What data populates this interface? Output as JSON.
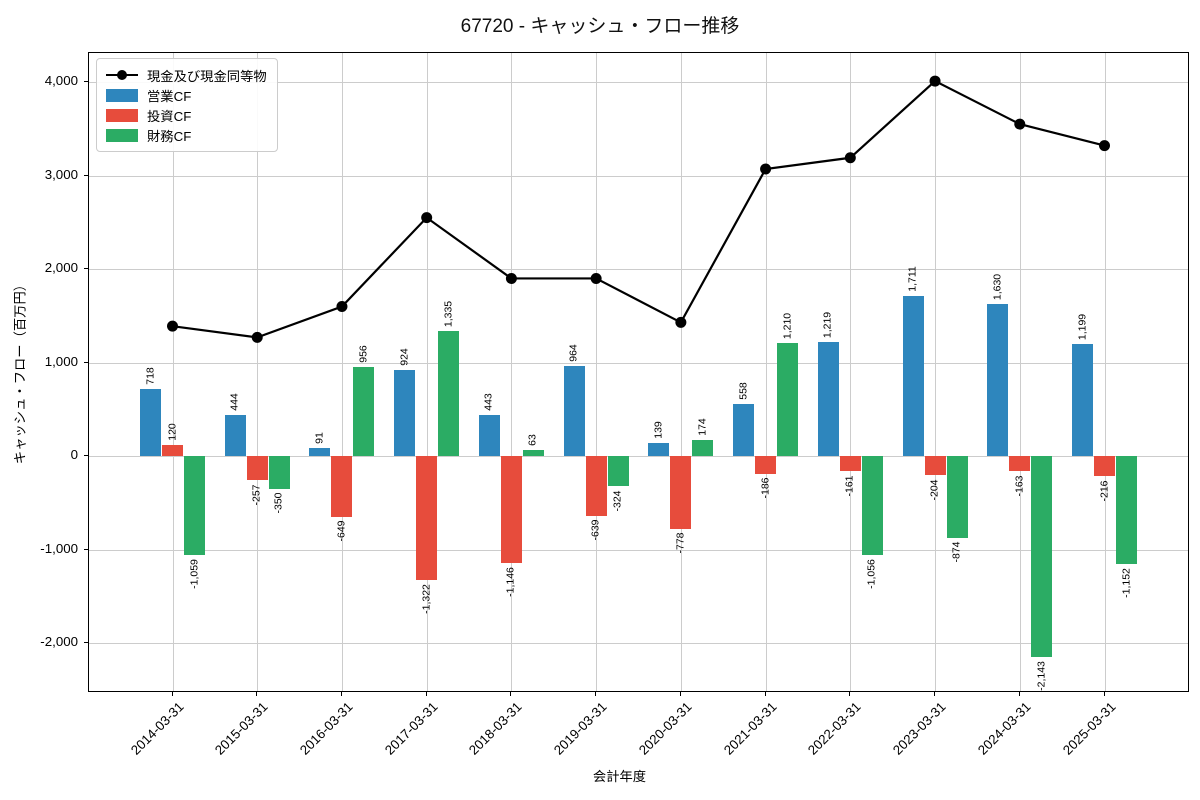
{
  "chart_data": {
    "type": "bar",
    "title": "67720 - キャッシュ・フロー推移",
    "xlabel": "会計年度",
    "ylabel": "キャッシュ・フロー（百万円）",
    "categories": [
      "2014-03-31",
      "2015-03-31",
      "2016-03-31",
      "2017-03-31",
      "2018-03-31",
      "2019-03-31",
      "2020-03-31",
      "2021-03-31",
      "2022-03-31",
      "2023-03-31",
      "2024-03-31",
      "2025-03-31"
    ],
    "series": [
      {
        "name": "現金及び現金同等物",
        "type": "line",
        "color": "#000000",
        "values": [
          1390,
          1270,
          1600,
          2550,
          1900,
          1900,
          1430,
          3070,
          3190,
          4010,
          3550,
          3320
        ]
      },
      {
        "name": "営業CF",
        "type": "bar",
        "color": "#2E86BD",
        "values": [
          718,
          444,
          91,
          924,
          443,
          964,
          139,
          558,
          1219,
          1711,
          1630,
          1199
        ]
      },
      {
        "name": "投資CF",
        "type": "bar",
        "color": "#E74C3C",
        "values": [
          120,
          -257,
          -649,
          -1322,
          -1146,
          -639,
          -778,
          -186,
          -161,
          -204,
          -163,
          -216
        ]
      },
      {
        "name": "財務CF",
        "type": "bar",
        "color": "#2BAC64",
        "values": [
          -1059,
          -350,
          956,
          1335,
          63,
          -324,
          174,
          1210,
          -1056,
          -874,
          -2143,
          -1152
        ]
      }
    ],
    "ylim": [
      -2510,
      4310
    ],
    "yticks": [
      -2000,
      -1000,
      0,
      1000,
      2000,
      3000,
      4000
    ],
    "grid": true,
    "bar_value_labels": true,
    "legend_position": "upper-left",
    "grid_color": "#cccccc",
    "spine_color": "#000000"
  }
}
